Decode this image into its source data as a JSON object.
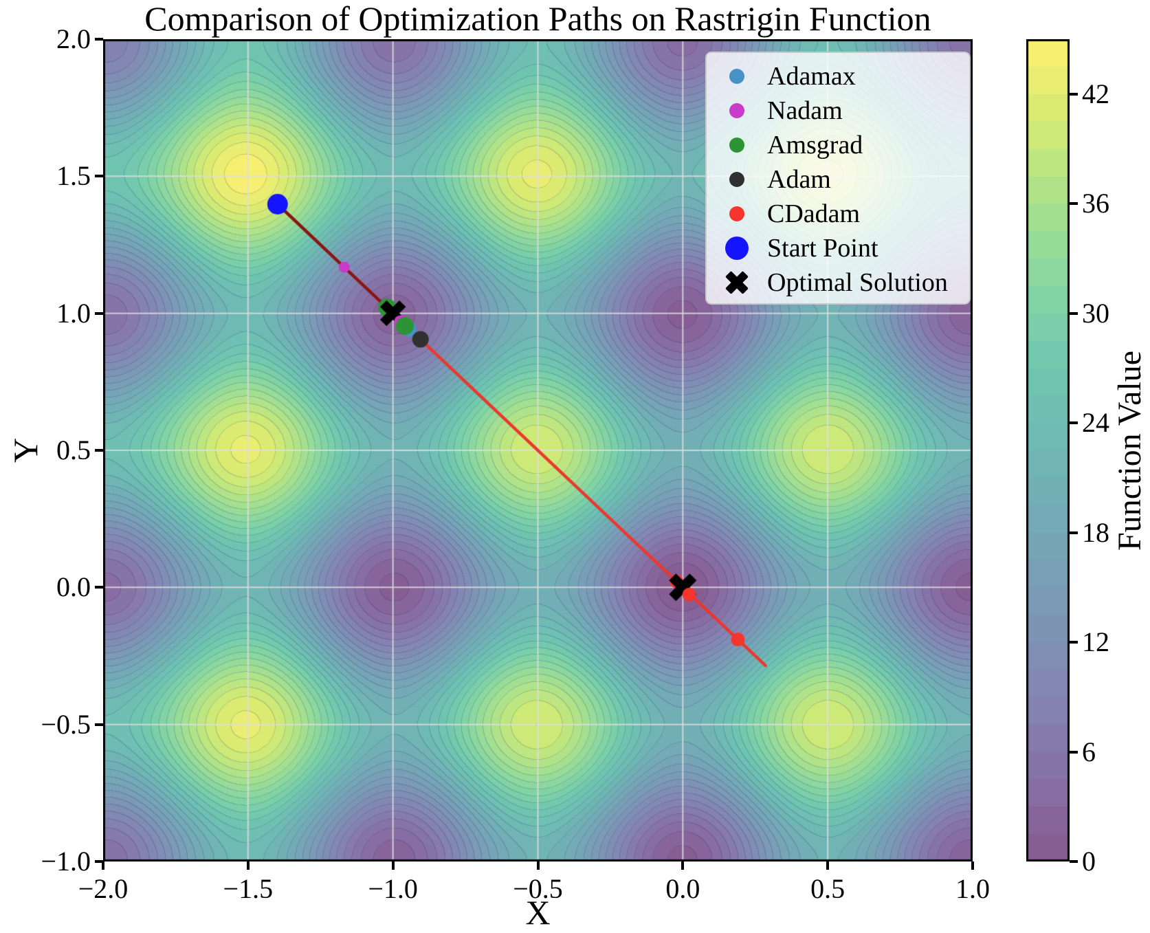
{
  "title": "Comparison of Optimization Paths on Rastrigin Function",
  "chart_data": {
    "type": "contour",
    "title": "Comparison of Optimization Paths on Rastrigin Function",
    "xlabel": "X",
    "ylabel": "Y",
    "xlim": [
      -2.0,
      1.0
    ],
    "ylim": [
      -1.0,
      2.0
    ],
    "xtick_values": [
      -2.0,
      -1.5,
      -1.0,
      -0.5,
      0.0,
      0.5,
      1.0
    ],
    "xtick_labels": [
      "−2.0",
      "−1.5",
      "−1.0",
      "−0.5",
      "0.0",
      "0.5",
      "1.0"
    ],
    "ytick_values": [
      2.0,
      1.5,
      1.0,
      0.5,
      0.0,
      -0.5,
      -1.0
    ],
    "ytick_labels": [
      "2.0",
      "1.5",
      "1.0",
      "0.5",
      "0.0",
      "−0.5",
      "−1.0"
    ],
    "grid": true,
    "surface": {
      "function": "rastrigin",
      "formula": "f(x,y) = 20 + x^2 - 10cos(2*pi*x) + y^2 - 10cos(2*pi*y)",
      "vmin": 0,
      "vmax": 45,
      "level_step": 1.5,
      "colormap": "viridis",
      "alpha": 0.65
    },
    "colorbar": {
      "label": "Function Value",
      "tick_values": [
        0,
        6,
        12,
        18,
        24,
        30,
        36,
        42
      ],
      "tick_labels": [
        "0",
        "6",
        "12",
        "18",
        "24",
        "30",
        "36",
        "42"
      ]
    },
    "legend": {
      "entries": [
        {
          "label": "Adamax",
          "marker": "dot",
          "color": "#4691C6",
          "size": 11
        },
        {
          "label": "Nadam",
          "marker": "dot",
          "color": "#C93BC9",
          "size": 11
        },
        {
          "label": "Amsgrad",
          "marker": "dot",
          "color": "#2D9435",
          "size": 11
        },
        {
          "label": "Adam",
          "marker": "dot",
          "color": "#303030",
          "size": 11
        },
        {
          "label": "CDadam",
          "marker": "dot",
          "color": "#F5352E",
          "size": 11
        },
        {
          "label": "Start Point",
          "marker": "dot",
          "color": "#1414FF",
          "size": 17
        },
        {
          "label": "Optimal Solution",
          "marker": "cross",
          "color": "#000000",
          "size": 12
        }
      ]
    },
    "path_segments": [
      {
        "name": "shared-descent-path",
        "color": "#8B1715",
        "width": 4.5,
        "from": [
          -1.398,
          1.398
        ],
        "to": [
          -0.905,
          0.905
        ]
      },
      {
        "name": "cdadam-path",
        "color": "#E9392E",
        "width": 4.5,
        "from": [
          -0.905,
          0.905
        ],
        "to": [
          0.285,
          -0.285
        ]
      }
    ],
    "markers": [
      {
        "series": "Nadam",
        "x": -1.168,
        "y": 1.168,
        "r": 8
      },
      {
        "series": "Amsgrad",
        "x": -1.02,
        "y": 1.021,
        "r": 13
      },
      {
        "series": "Optimal Solution",
        "x": -1.0,
        "y": 1.0,
        "r": 14
      },
      {
        "series": "Nadam",
        "x": -0.973,
        "y": 0.968,
        "r": 10
      },
      {
        "series": "Adamax",
        "x": -0.944,
        "y": 0.941,
        "r": 11
      },
      {
        "series": "Amsgrad",
        "x": -0.959,
        "y": 0.954,
        "r": 13
      },
      {
        "series": "Adam",
        "x": -0.905,
        "y": 0.905,
        "r": 12
      },
      {
        "series": "CDadam",
        "x": -0.022,
        "y": 0.022,
        "r": 10
      },
      {
        "series": "Optimal Solution",
        "x": 0.0,
        "y": 0.0,
        "r": 15
      },
      {
        "series": "CDadam",
        "x": 0.022,
        "y": -0.026,
        "r": 10
      },
      {
        "series": "CDadam",
        "x": 0.19,
        "y": -0.19,
        "r": 10
      },
      {
        "series": "Start Point",
        "x": -1.398,
        "y": 1.398,
        "r": 15
      }
    ]
  }
}
